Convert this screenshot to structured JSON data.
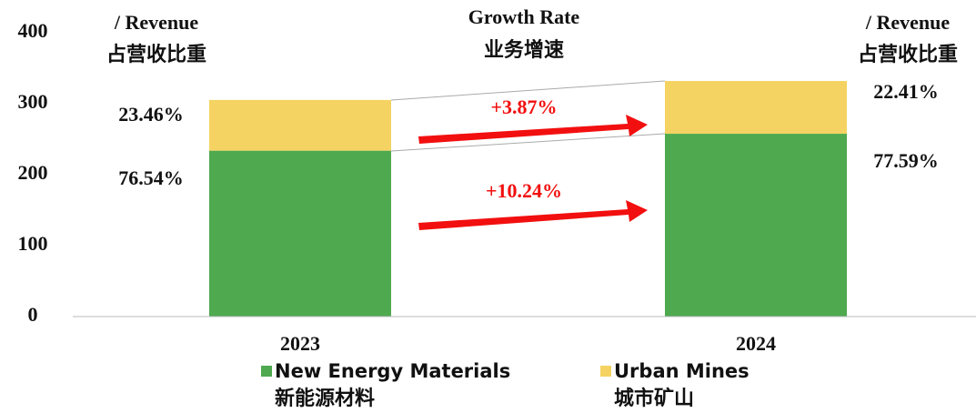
{
  "chart_data": {
    "type": "stacked_bar",
    "categories": [
      "2023",
      "2024"
    ],
    "series": [
      {
        "name": "New Energy Materials",
        "name_cn": "新能源材料",
        "color": "#4ea94f",
        "values": [
          233.69,
          257.62
        ],
        "value_labels": [
          "233.69",
          "257.62"
        ]
      },
      {
        "name": "Urban Mines",
        "name_cn": "城市矿山",
        "color": "#f5d362",
        "values": [
          71.6,
          74.37
        ],
        "value_labels": [
          "71.60",
          "74.37"
        ]
      }
    ],
    "ylim": [
      0,
      400
    ],
    "yticks": [
      0,
      100,
      200,
      300,
      400
    ],
    "grid": false,
    "share_header": "/ Revenue",
    "share_header_cn": "占营收比重",
    "growth_header": "Growth Rate",
    "growth_header_cn": "业务增速",
    "shares": [
      [
        "76.54%",
        "23.46%"
      ],
      [
        "77.59%",
        "22.41%"
      ]
    ],
    "growth": [
      "+10.24%",
      "+3.87%"
    ]
  }
}
